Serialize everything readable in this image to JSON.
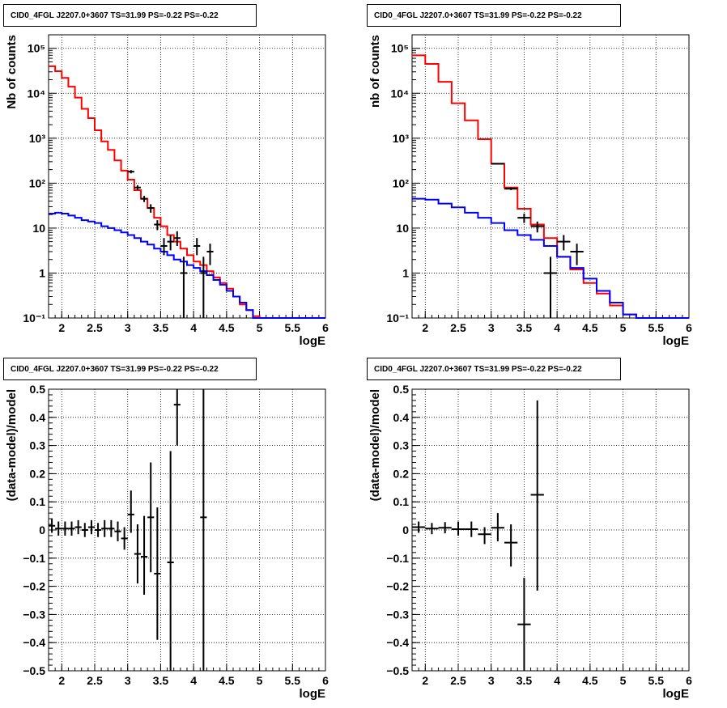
{
  "chart_data": [
    {
      "type": "line",
      "title": "CID0_4FGL J2207.0+3607 TS=31.99 PS=-0.22 PS=-0.22",
      "xlabel": "logE",
      "ylabel": "Nb of counts",
      "xlim": [
        1.8,
        6.0
      ],
      "ylim": [
        0.1,
        200000
      ],
      "log_y": true,
      "grid": true,
      "x_ticks": [
        "2",
        "2.5",
        "3",
        "3.5",
        "4",
        "4.5",
        "5",
        "5.5",
        "6"
      ],
      "y_ticks": [
        "10^-1",
        "1",
        "10",
        "10^2",
        "10^3",
        "10^4",
        "10^5"
      ],
      "bin_edges": [
        1.8,
        1.9,
        2.0,
        2.1,
        2.2,
        2.3,
        2.4,
        2.5,
        2.6,
        2.7,
        2.8,
        2.9,
        3.0,
        3.1,
        3.2,
        3.3,
        3.4,
        3.5,
        3.6,
        3.7,
        3.8,
        3.9,
        4.0,
        4.1,
        4.2,
        4.3,
        4.4,
        4.5,
        4.6,
        4.7,
        4.8,
        4.9,
        5.0,
        5.1,
        5.2,
        5.3,
        5.4,
        5.5,
        5.6,
        5.7,
        5.8,
        5.9,
        6.0
      ],
      "series": [
        {
          "color": "#ff0000",
          "values": [
            40000,
            31000,
            22000,
            14000,
            8000,
            4500,
            2800,
            1500,
            850,
            550,
            320,
            190,
            120,
            70,
            45,
            28,
            17,
            11,
            7,
            5,
            3.5,
            2.5,
            1.8,
            1.5,
            1.1,
            0.8,
            0.6,
            0.45,
            0.3,
            0.2,
            0.15,
            0.11,
            0.1,
            0.1,
            0.1,
            0.1,
            0.1,
            0.1,
            0.1,
            0.1,
            0.1,
            0.1
          ]
        },
        {
          "color": "#0000ff",
          "values": [
            21,
            22,
            21,
            19,
            17,
            15,
            14,
            13,
            11,
            10,
            9,
            8,
            7,
            6,
            5,
            4.3,
            3.5,
            3,
            2.5,
            2,
            1.8,
            1.5,
            1.3,
            1.1,
            0.9,
            0.7,
            0.55,
            0.4,
            0.3,
            0.22,
            0.15,
            0.1,
            0.1,
            0.1,
            0.1,
            0.1,
            0.1,
            0.1,
            0.1,
            0.1,
            0.1,
            0.1
          ]
        }
      ],
      "points": [
        {
          "x": 3.05,
          "y": 180,
          "ylo": 165,
          "yhi": 195
        },
        {
          "x": 3.15,
          "y": 80,
          "ylo": 70,
          "yhi": 90
        },
        {
          "x": 3.25,
          "y": 45,
          "ylo": 38,
          "yhi": 52
        },
        {
          "x": 3.35,
          "y": 28,
          "ylo": 22,
          "yhi": 34
        },
        {
          "x": 3.45,
          "y": 12,
          "ylo": 9,
          "yhi": 15
        },
        {
          "x": 3.55,
          "y": 4,
          "ylo": 2.5,
          "yhi": 6
        },
        {
          "x": 3.65,
          "y": 5,
          "ylo": 3.2,
          "yhi": 7
        },
        {
          "x": 3.75,
          "y": 6,
          "ylo": 4,
          "yhi": 8.5
        },
        {
          "x": 3.85,
          "y": 1,
          "ylo": 0.1,
          "yhi": 2.3
        },
        {
          "x": 4.05,
          "y": 4,
          "ylo": 2.5,
          "yhi": 6
        },
        {
          "x": 4.15,
          "y": 1,
          "ylo": 0.1,
          "yhi": 2.3
        },
        {
          "x": 4.25,
          "y": 3,
          "ylo": 1.5,
          "yhi": 4.5
        }
      ]
    },
    {
      "type": "line",
      "title": "CID0_4FGL J2207.0+3607 TS=31.99 PS=-0.22 PS=-0.22",
      "xlabel": "logE",
      "ylabel": "nb of counts",
      "xlim": [
        1.8,
        6.0
      ],
      "ylim": [
        0.1,
        200000
      ],
      "log_y": true,
      "grid": true,
      "x_ticks": [
        "2",
        "2.5",
        "3",
        "3.5",
        "4",
        "4.5",
        "5",
        "5.5",
        "6"
      ],
      "y_ticks": [
        "10^-1",
        "1",
        "10",
        "10^2",
        "10^3",
        "10^4",
        "10^5"
      ],
      "bin_edges": [
        1.8,
        2.0,
        2.2,
        2.4,
        2.6,
        2.8,
        3.0,
        3.2,
        3.4,
        3.6,
        3.8,
        4.0,
        4.2,
        4.4,
        4.6,
        4.8,
        5.0,
        5.2,
        5.4,
        5.6,
        5.8,
        6.0
      ],
      "series": [
        {
          "color": "#ff0000",
          "values": [
            70000,
            45000,
            18000,
            6000,
            2500,
            950,
            270,
            80,
            27,
            12,
            6,
            2.3,
            1.2,
            0.6,
            0.35,
            0.19,
            0.12,
            0.1,
            0.1,
            0.1,
            0.1
          ]
        },
        {
          "color": "#0000ff",
          "values": [
            45,
            43,
            35,
            29,
            22,
            17,
            13,
            9,
            7,
            5.5,
            4,
            2.3,
            1.3,
            0.75,
            0.4,
            0.22,
            0.12,
            0.1,
            0.1,
            0.1,
            0.1
          ]
        }
      ],
      "points": [
        {
          "x": 3.1,
          "y": 270,
          "ylo": 260,
          "yhi": 280
        },
        {
          "x": 3.3,
          "y": 75,
          "ylo": 70,
          "yhi": 80
        },
        {
          "x": 3.5,
          "y": 17,
          "ylo": 13,
          "yhi": 21
        },
        {
          "x": 3.7,
          "y": 11,
          "ylo": 8,
          "yhi": 14
        },
        {
          "x": 3.9,
          "y": 1,
          "ylo": 0.1,
          "yhi": 2.3
        },
        {
          "x": 4.1,
          "y": 5,
          "ylo": 3.2,
          "yhi": 7
        },
        {
          "x": 4.3,
          "y": 3,
          "ylo": 1.5,
          "yhi": 4.5
        }
      ]
    },
    {
      "type": "scatter",
      "title": "CID0_4FGL J2207.0+3607 TS=31.99 PS=-0.22 PS=-0.22",
      "xlabel": "logE",
      "ylabel": "(data-model)/model",
      "xlim": [
        1.8,
        6.0
      ],
      "ylim": [
        -0.5,
        0.5
      ],
      "grid": true,
      "x_ticks": [
        "2",
        "2.5",
        "3",
        "3.5",
        "4",
        "4.5",
        "5",
        "5.5",
        "6"
      ],
      "y_ticks": [
        "−0.5",
        "−0.4",
        "−0.3",
        "−0.2",
        "−0.1",
        "0",
        "0.1",
        "0.2",
        "0.3",
        "0.4",
        "0.5"
      ],
      "bin_width": 0.1,
      "points": [
        {
          "x": 1.85,
          "y": 0.015,
          "ylo": -0.01,
          "yhi": 0.04
        },
        {
          "x": 1.95,
          "y": 0.005,
          "ylo": -0.02,
          "yhi": 0.03
        },
        {
          "x": 2.05,
          "y": 0.005,
          "ylo": -0.02,
          "yhi": 0.03
        },
        {
          "x": 2.15,
          "y": 0.005,
          "ylo": -0.02,
          "yhi": 0.03
        },
        {
          "x": 2.25,
          "y": 0.01,
          "ylo": -0.015,
          "yhi": 0.035
        },
        {
          "x": 2.35,
          "y": 0.0,
          "ylo": -0.025,
          "yhi": 0.025
        },
        {
          "x": 2.45,
          "y": 0.01,
          "ylo": -0.015,
          "yhi": 0.035
        },
        {
          "x": 2.55,
          "y": 0.0,
          "ylo": -0.025,
          "yhi": 0.025
        },
        {
          "x": 2.65,
          "y": 0.005,
          "ylo": -0.025,
          "yhi": 0.035
        },
        {
          "x": 2.75,
          "y": 0.005,
          "ylo": -0.025,
          "yhi": 0.035
        },
        {
          "x": 2.85,
          "y": -0.005,
          "ylo": -0.04,
          "yhi": 0.03
        },
        {
          "x": 2.95,
          "y": -0.03,
          "ylo": -0.07,
          "yhi": 0.01
        },
        {
          "x": 3.05,
          "y": 0.055,
          "ylo": -0.01,
          "yhi": 0.14
        },
        {
          "x": 3.15,
          "y": -0.085,
          "ylo": -0.19,
          "yhi": 0.02
        },
        {
          "x": 3.25,
          "y": -0.095,
          "ylo": -0.23,
          "yhi": 0.05
        },
        {
          "x": 3.35,
          "y": 0.045,
          "ylo": -0.15,
          "yhi": 0.24
        },
        {
          "x": 3.45,
          "y": -0.155,
          "ylo": -0.39,
          "yhi": 0.08
        },
        {
          "x": 3.65,
          "y": -0.115,
          "ylo": -0.5,
          "yhi": 0.28
        },
        {
          "x": 3.75,
          "y": 0.445,
          "ylo": 0.3,
          "yhi": 0.5
        },
        {
          "x": 4.15,
          "y": 0.045,
          "ylo": -0.5,
          "yhi": 0.5
        }
      ]
    },
    {
      "type": "scatter",
      "title": "CID0_4FGL J2207.0+3607 TS=31.99 PS=-0.22 PS=-0.22",
      "xlabel": "logE",
      "ylabel": "(data-model)/model",
      "xlim": [
        1.8,
        6.0
      ],
      "ylim": [
        -0.5,
        0.5
      ],
      "grid": true,
      "x_ticks": [
        "2",
        "2.5",
        "3",
        "3.5",
        "4",
        "4.5",
        "5",
        "5.5",
        "6"
      ],
      "y_ticks": [
        "−0.5",
        "−0.4",
        "−0.3",
        "−0.2",
        "−0.1",
        "0",
        "0.1",
        "0.2",
        "0.3",
        "0.4",
        "0.5"
      ],
      "bin_width": 0.2,
      "points": [
        {
          "x": 1.9,
          "y": 0.01,
          "ylo": -0.01,
          "yhi": 0.03
        },
        {
          "x": 2.1,
          "y": 0.005,
          "ylo": -0.015,
          "yhi": 0.025
        },
        {
          "x": 2.3,
          "y": 0.008,
          "ylo": -0.012,
          "yhi": 0.028
        },
        {
          "x": 2.5,
          "y": 0.003,
          "ylo": -0.02,
          "yhi": 0.03
        },
        {
          "x": 2.7,
          "y": 0.003,
          "ylo": -0.025,
          "yhi": 0.03
        },
        {
          "x": 2.9,
          "y": -0.015,
          "ylo": -0.05,
          "yhi": 0.01
        },
        {
          "x": 3.1,
          "y": 0.008,
          "ylo": -0.04,
          "yhi": 0.06
        },
        {
          "x": 3.3,
          "y": -0.045,
          "ylo": -0.13,
          "yhi": 0.02
        },
        {
          "x": 3.5,
          "y": -0.335,
          "ylo": -0.5,
          "yhi": -0.17
        },
        {
          "x": 3.7,
          "y": 0.125,
          "ylo": -0.215,
          "yhi": 0.46
        }
      ]
    }
  ]
}
